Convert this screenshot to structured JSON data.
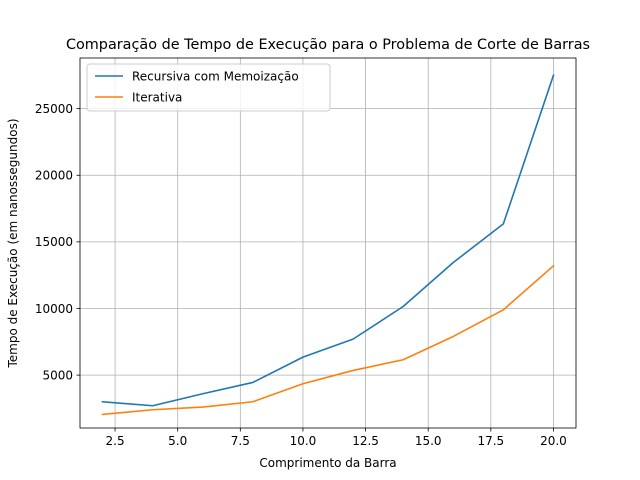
{
  "chart_data": {
    "type": "line",
    "title": "Comparação de Tempo de Execução para o Problema de Corte de Barras",
    "xlabel": "Comprimento da Barra",
    "ylabel": "Tempo de Execução (em nanossegundos)",
    "xlim": [
      1.1,
      20.9
    ],
    "ylim": [
      1030,
      28800
    ],
    "grid": true,
    "legend_position": "top-left",
    "x": [
      2,
      4,
      6,
      8,
      10,
      12,
      14,
      16,
      18,
      20
    ],
    "x_ticks": [
      2.5,
      5.0,
      7.5,
      10.0,
      12.5,
      15.0,
      17.5,
      20.0
    ],
    "x_tick_labels": [
      "2.5",
      "5.0",
      "7.5",
      "10.0",
      "12.5",
      "15.0",
      "17.5",
      "20.0"
    ],
    "y_ticks": [
      5000,
      10000,
      15000,
      20000,
      25000
    ],
    "y_tick_labels": [
      "5000",
      "10000",
      "15000",
      "20000",
      "25000"
    ],
    "series": [
      {
        "name": "Recursiva com Memoização",
        "color": "#1f77b4",
        "values": [
          3000,
          2700,
          3600,
          4450,
          6350,
          7700,
          10150,
          13450,
          16350,
          27500
        ]
      },
      {
        "name": "Iterativa",
        "color": "#ff7f0e",
        "values": [
          2050,
          2400,
          2600,
          3000,
          4350,
          5350,
          6150,
          7900,
          9900,
          13200
        ]
      }
    ]
  }
}
